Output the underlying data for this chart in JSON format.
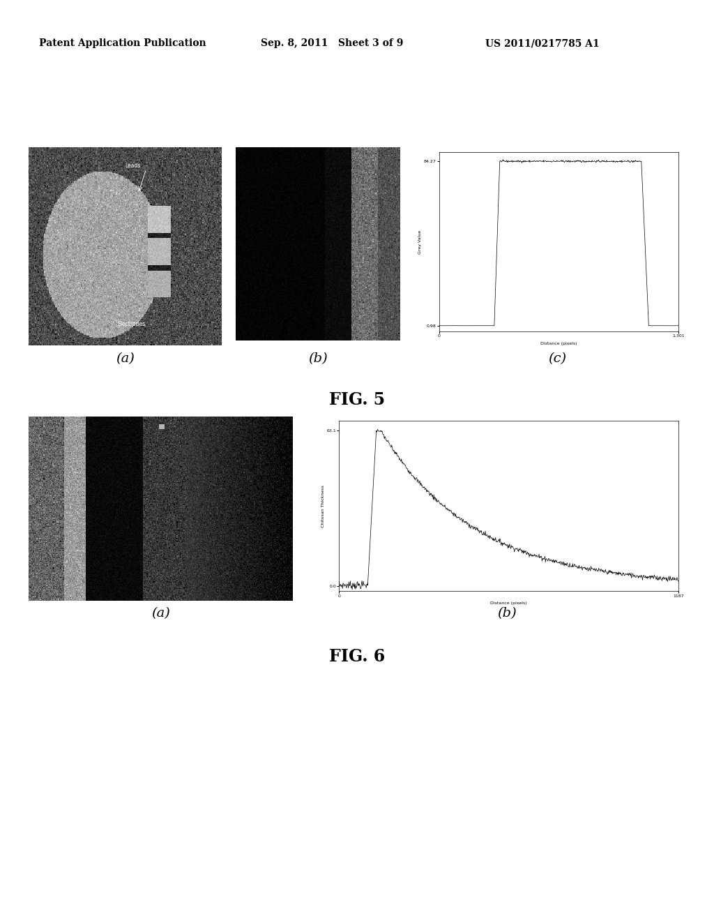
{
  "header_left": "Patent Application Publication",
  "header_mid": "Sep. 8, 2011   Sheet 3 of 9",
  "header_right": "US 2011/0217785 A1",
  "fig5_label": "FIG. 5",
  "fig6_label": "FIG. 6",
  "fig5a_label": "(a)",
  "fig5b_label": "(b)",
  "fig5c_label": "(c)",
  "fig6a_label": "(a)",
  "fig6b_label": "(b)",
  "background_color": "#ffffff",
  "header_fontsize": 10,
  "fig_label_fontsize": 17,
  "sub_label_fontsize": 14
}
